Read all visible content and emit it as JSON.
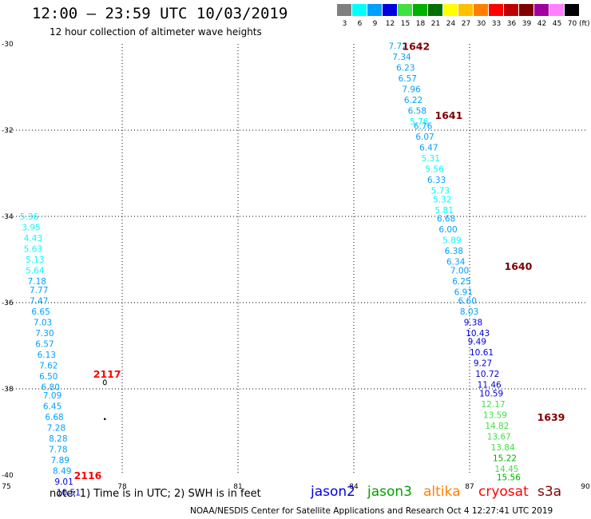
{
  "header": {
    "title": "12:00 – 23:59 UTC 10/03/2019",
    "subtitle": "12 hour collection of altimeter wave heights"
  },
  "legend": {
    "unit": "(ft)",
    "bins": [
      {
        "label": "3",
        "color": "#808080"
      },
      {
        "label": "6",
        "color": "#00ffff"
      },
      {
        "label": "9",
        "color": "#00a0ff"
      },
      {
        "label": "12",
        "color": "#0000e0"
      },
      {
        "label": "15",
        "color": "#40e040"
      },
      {
        "label": "18",
        "color": "#00b000"
      },
      {
        "label": "21",
        "color": "#007000"
      },
      {
        "label": "24",
        "color": "#ffff00"
      },
      {
        "label": "27",
        "color": "#ffc000"
      },
      {
        "label": "30",
        "color": "#ff8000"
      },
      {
        "label": "33",
        "color": "#ff0000"
      },
      {
        "label": "36",
        "color": "#c00000"
      },
      {
        "label": "39",
        "color": "#800000"
      },
      {
        "label": "42",
        "color": "#a000a0"
      },
      {
        "label": "45",
        "color": "#ff80ff"
      },
      {
        "label": "70",
        "color": "#000000"
      }
    ]
  },
  "map": {
    "lon_range": [
      75,
      90
    ],
    "lat_range": [
      -40,
      -30
    ],
    "lon_ticks": [
      "75",
      "78",
      "81",
      "84",
      "87",
      "90"
    ],
    "lat_ticks": [
      "-30",
      "-32",
      "-34",
      "-36",
      "-38",
      "-40"
    ]
  },
  "chart_data": {
    "type": "scatter",
    "x_axis": "longitude",
    "y_axis": "latitude",
    "tracks": [
      {
        "labels": [
          {
            "text": "1642",
            "lon": 85.25,
            "lat": -30.05,
            "color": "#800000"
          },
          {
            "text": "1641",
            "lon": 86.1,
            "lat": -31.65,
            "color": "#800000"
          },
          {
            "text": "1640",
            "lon": 87.9,
            "lat": -35.15,
            "color": "#800000"
          },
          {
            "text": "1639",
            "lon": 88.75,
            "lat": -38.65,
            "color": "#800000"
          }
        ],
        "points": [
          {
            "value": "7.72",
            "lon": 84.9,
            "lat": -30.05,
            "color": "#00a0ff"
          },
          {
            "value": "7.34",
            "lon": 85.0,
            "lat": -30.3,
            "color": "#00a0ff"
          },
          {
            "value": "6.23",
            "lon": 85.1,
            "lat": -30.55,
            "color": "#00a0ff"
          },
          {
            "value": "6.57",
            "lon": 85.15,
            "lat": -30.8,
            "color": "#00a0ff"
          },
          {
            "value": "7.96",
            "lon": 85.25,
            "lat": -31.05,
            "color": "#00a0ff"
          },
          {
            "value": "6.22",
            "lon": 85.3,
            "lat": -31.3,
            "color": "#00a0ff"
          },
          {
            "value": "6.58",
            "lon": 85.4,
            "lat": -31.55,
            "color": "#00a0ff"
          },
          {
            "value": "5.76",
            "lon": 85.45,
            "lat": -31.8,
            "color": "#00ffff"
          },
          {
            "value": "6.76",
            "lon": 85.55,
            "lat": -31.9,
            "color": "#00a0ff"
          },
          {
            "value": "6.07",
            "lon": 85.6,
            "lat": -32.15,
            "color": "#00a0ff"
          },
          {
            "value": "6.47",
            "lon": 85.7,
            "lat": -32.4,
            "color": "#00a0ff"
          },
          {
            "value": "5.31",
            "lon": 85.75,
            "lat": -32.65,
            "color": "#00ffff"
          },
          {
            "value": "5.56",
            "lon": 85.85,
            "lat": -32.9,
            "color": "#00ffff"
          },
          {
            "value": "6.33",
            "lon": 85.9,
            "lat": -33.15,
            "color": "#00a0ff"
          },
          {
            "value": "5.73",
            "lon": 86.0,
            "lat": -33.4,
            "color": "#00ffff"
          },
          {
            "value": "5.32",
            "lon": 86.05,
            "lat": -33.6,
            "color": "#00ffff"
          },
          {
            "value": "5.81",
            "lon": 86.1,
            "lat": -33.85,
            "color": "#00ffff"
          },
          {
            "value": "6.68",
            "lon": 86.15,
            "lat": -34.05,
            "color": "#00a0ff"
          },
          {
            "value": "6.00",
            "lon": 86.2,
            "lat": -34.3,
            "color": "#00a0ff"
          },
          {
            "value": "5.89",
            "lon": 86.3,
            "lat": -34.55,
            "color": "#00ffff"
          },
          {
            "value": "6.38",
            "lon": 86.35,
            "lat": -34.8,
            "color": "#00a0ff"
          },
          {
            "value": "6.34",
            "lon": 86.4,
            "lat": -35.05,
            "color": "#00a0ff"
          },
          {
            "value": "7.00",
            "lon": 86.5,
            "lat": -35.25,
            "color": "#00a0ff"
          },
          {
            "value": "6.25",
            "lon": 86.55,
            "lat": -35.5,
            "color": "#00a0ff"
          },
          {
            "value": "6.91",
            "lon": 86.6,
            "lat": -35.75,
            "color": "#00a0ff"
          },
          {
            "value": "6.60",
            "lon": 86.7,
            "lat": -35.95,
            "color": "#00a0ff"
          },
          {
            "value": "8.03",
            "lon": 86.75,
            "lat": -36.2,
            "color": "#00a0ff"
          },
          {
            "value": "9.38",
            "lon": 86.85,
            "lat": -36.45,
            "color": "#0000e0"
          },
          {
            "value": "10.43",
            "lon": 86.9,
            "lat": -36.7,
            "color": "#0000e0"
          },
          {
            "value": "9.49",
            "lon": 86.95,
            "lat": -36.9,
            "color": "#0000e0"
          },
          {
            "value": "10.61",
            "lon": 87.0,
            "lat": -37.15,
            "color": "#0000e0"
          },
          {
            "value": "9.27",
            "lon": 87.1,
            "lat": -37.4,
            "color": "#0000e0"
          },
          {
            "value": "10.72",
            "lon": 87.15,
            "lat": -37.65,
            "color": "#0000e0"
          },
          {
            "value": "11.46",
            "lon": 87.2,
            "lat": -37.9,
            "color": "#0000e0"
          },
          {
            "value": "10.59",
            "lon": 87.25,
            "lat": -38.1,
            "color": "#0000e0"
          },
          {
            "value": "12.17",
            "lon": 87.3,
            "lat": -38.35,
            "color": "#40e040"
          },
          {
            "value": "13.59",
            "lon": 87.35,
            "lat": -38.6,
            "color": "#40e040"
          },
          {
            "value": "14.82",
            "lon": 87.4,
            "lat": -38.85,
            "color": "#40e040"
          },
          {
            "value": "13.67",
            "lon": 87.45,
            "lat": -39.1,
            "color": "#40e040"
          },
          {
            "value": "13.84",
            "lon": 87.55,
            "lat": -39.35,
            "color": "#40e040"
          },
          {
            "value": "15.22",
            "lon": 87.6,
            "lat": -39.6,
            "color": "#00b000"
          },
          {
            "value": "14.45",
            "lon": 87.65,
            "lat": -39.85,
            "color": "#40e040"
          },
          {
            "value": "15.56",
            "lon": 87.7,
            "lat": -40.05,
            "color": "#00b000"
          }
        ]
      },
      {
        "labels": [
          {
            "text": "2117",
            "lon": 77.25,
            "lat": -37.65,
            "color": "#ff0000"
          },
          {
            "text": "2116",
            "lon": 76.75,
            "lat": -40.0,
            "color": "#ff0000"
          }
        ],
        "points": [
          {
            "value": "5.36",
            "lon": 75.35,
            "lat": -34.0,
            "color": "#00ffff"
          },
          {
            "value": "3.95",
            "lon": 75.4,
            "lat": -34.25,
            "color": "#00ffff"
          },
          {
            "value": "4.43",
            "lon": 75.45,
            "lat": -34.5,
            "color": "#00ffff"
          },
          {
            "value": "5.63",
            "lon": 75.45,
            "lat": -34.75,
            "color": "#00ffff"
          },
          {
            "value": "5.13",
            "lon": 75.5,
            "lat": -35.0,
            "color": "#00ffff"
          },
          {
            "value": "5.64",
            "lon": 75.5,
            "lat": -35.25,
            "color": "#00ffff"
          },
          {
            "value": "7.18",
            "lon": 75.55,
            "lat": -35.5,
            "color": "#00a0ff"
          },
          {
            "value": "7.77",
            "lon": 75.6,
            "lat": -35.7,
            "color": "#00a0ff"
          },
          {
            "value": "7.47",
            "lon": 75.6,
            "lat": -35.95,
            "color": "#00a0ff"
          },
          {
            "value": "6.65",
            "lon": 75.65,
            "lat": -36.2,
            "color": "#00a0ff"
          },
          {
            "value": "7.03",
            "lon": 75.7,
            "lat": -36.45,
            "color": "#00a0ff"
          },
          {
            "value": "7.30",
            "lon": 75.75,
            "lat": -36.7,
            "color": "#00a0ff"
          },
          {
            "value": "6.57",
            "lon": 75.75,
            "lat": -36.95,
            "color": "#00a0ff"
          },
          {
            "value": "6.13",
            "lon": 75.8,
            "lat": -37.2,
            "color": "#00a0ff"
          },
          {
            "value": "7.62",
            "lon": 75.85,
            "lat": -37.45,
            "color": "#00a0ff"
          },
          {
            "value": "6.50",
            "lon": 75.85,
            "lat": -37.7,
            "color": "#00a0ff"
          },
          {
            "value": "6.80",
            "lon": 75.9,
            "lat": -37.95,
            "color": "#00a0ff"
          },
          {
            "value": "7.09",
            "lon": 75.95,
            "lat": -38.15,
            "color": "#00a0ff"
          },
          {
            "value": "6.45",
            "lon": 75.95,
            "lat": -38.4,
            "color": "#00a0ff"
          },
          {
            "value": "6.68",
            "lon": 76.0,
            "lat": -38.65,
            "color": "#00a0ff"
          },
          {
            "value": "7.28",
            "lon": 76.05,
            "lat": -38.9,
            "color": "#00a0ff"
          },
          {
            "value": "8.28",
            "lon": 76.1,
            "lat": -39.15,
            "color": "#00a0ff"
          },
          {
            "value": "7.78",
            "lon": 76.1,
            "lat": -39.4,
            "color": "#00a0ff"
          },
          {
            "value": "7.89",
            "lon": 76.15,
            "lat": -39.65,
            "color": "#00a0ff"
          },
          {
            "value": "8.49",
            "lon": 76.2,
            "lat": -39.9,
            "color": "#00a0ff"
          },
          {
            "value": "9.01",
            "lon": 76.25,
            "lat": -40.15,
            "color": "#0000e0"
          },
          {
            "value": "10.51",
            "lon": 76.3,
            "lat": -40.4,
            "color": "#0000e0"
          }
        ]
      }
    ],
    "markers": [
      {
        "type": "island-circle",
        "lon": 77.55,
        "lat": -37.85
      },
      {
        "type": "island-dot",
        "lon": 77.55,
        "lat": -38.7
      }
    ]
  },
  "footer": {
    "note": "note: 1) Time is in UTC; 2) SWH is in feet",
    "satellites": [
      {
        "name": "jason2",
        "color": "#0000e0"
      },
      {
        "name": "jason3",
        "color": "#00a000"
      },
      {
        "name": "altika",
        "color": "#ff8000"
      },
      {
        "name": "cryosat",
        "color": "#ff0000"
      },
      {
        "name": "s3a",
        "color": "#800000"
      }
    ],
    "credit": "NOAA/NESDIS Center for Satellite Applications and Research   Oct  4 12:27:41 UTC 2019"
  }
}
